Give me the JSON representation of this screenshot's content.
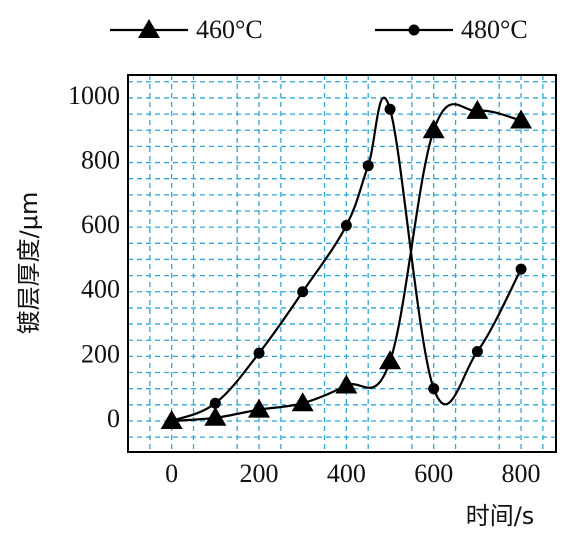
{
  "chart_data": {
    "type": "line",
    "x_label": "时间/s",
    "y_label": "镀层厚度/μm",
    "xlim": [
      -100,
      880
    ],
    "ylim": [
      -96,
      1071
    ],
    "xticks": [
      0,
      200,
      400,
      600,
      800
    ],
    "yticks": [
      0,
      200,
      400,
      600,
      800,
      1000
    ],
    "grid": true,
    "grid_color": "#2fa8d8",
    "xgrid": [
      -50,
      50,
      150,
      250,
      350,
      450,
      550,
      650,
      750,
      850
    ],
    "ygrid": [
      -50,
      50,
      100,
      150,
      250,
      300,
      350,
      450,
      500,
      550,
      650,
      700,
      750,
      850,
      900,
      950,
      1050
    ],
    "legend": "top",
    "series": [
      {
        "name": "460°C",
        "color": "#000000",
        "marker": "triangle",
        "x": [
          0,
          100,
          200,
          300,
          400,
          500,
          600,
          700,
          800
        ],
        "values": [
          0,
          10,
          35,
          55,
          110,
          185,
          900,
          960,
          930
        ]
      },
      {
        "name": "480°C",
        "color": "#000000",
        "marker": "circle",
        "x": [
          0,
          100,
          200,
          300,
          400,
          450,
          500,
          600,
          700,
          800
        ],
        "values": [
          0,
          55,
          210,
          400,
          605,
          790,
          965,
          100,
          215,
          470
        ]
      }
    ]
  }
}
